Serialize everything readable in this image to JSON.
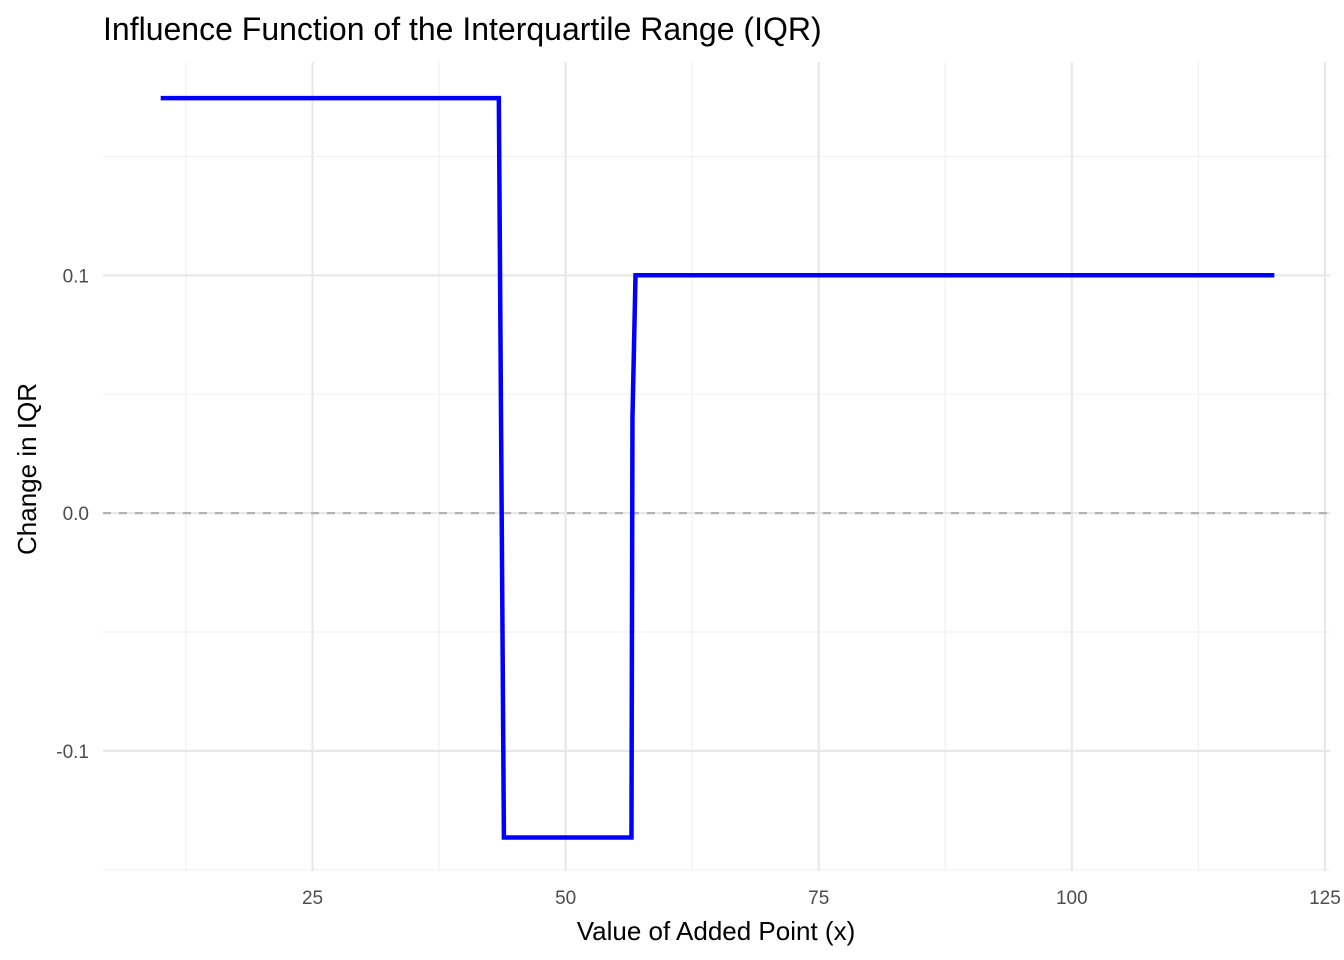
{
  "chart_data": {
    "type": "line",
    "title": "Influence Function of the Interquartile Range (IQR)",
    "xlabel": "Value of Added Point (x)",
    "ylabel": "Change in IQR",
    "xlim": [
      4.3,
      125.5
    ],
    "ylim": [
      -0.1505,
      0.1897
    ],
    "x_major_ticks": [
      25,
      50,
      75,
      100,
      125
    ],
    "x_minor_ticks": [
      12.5,
      37.5,
      62.5,
      87.5,
      112.5
    ],
    "y_major_ticks": [
      -0.1,
      0.0,
      0.1
    ],
    "y_minor_ticks": [
      -0.15,
      -0.05,
      0.05,
      0.15
    ],
    "x_tick_labels": [
      "25",
      "50",
      "75",
      "100",
      "125"
    ],
    "y_tick_labels": [
      "-0.1",
      "0.0",
      "0.1"
    ],
    "grid": true,
    "reference_line": {
      "y": 0.0,
      "style": "dashed",
      "color": "#b3b3b3"
    },
    "series": [
      {
        "color": "#0000ff",
        "points": [
          [
            10,
            0.1745
          ],
          [
            43.4,
            0.1745
          ],
          [
            43.9,
            -0.1364
          ],
          [
            56.5,
            -0.1364
          ],
          [
            56.6,
            0.04
          ],
          [
            56.9,
            0.1
          ],
          [
            120,
            0.1
          ]
        ]
      }
    ]
  }
}
